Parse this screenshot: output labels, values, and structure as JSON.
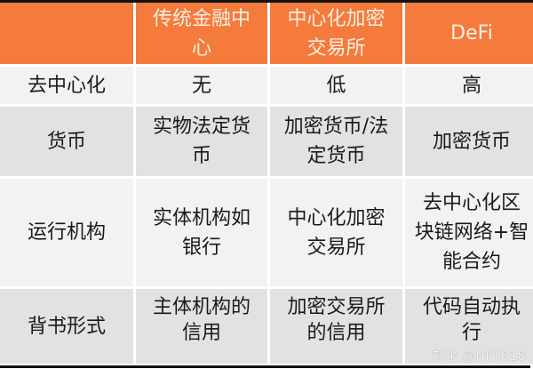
{
  "header": [
    "",
    [
      "传统金融中",
      "心"
    ],
    [
      "中心化加密",
      "交易所"
    ],
    [
      "DeFi"
    ]
  ],
  "rows": [
    {
      "label": "去中心化",
      "cells": [
        [
          "无"
        ],
        [
          "低"
        ],
        [
          "高"
        ]
      ]
    },
    {
      "label": "货币",
      "cells": [
        [
          "实物法定货",
          "币"
        ],
        [
          "加密货币/法",
          "定货币"
        ],
        [
          "加密货币"
        ]
      ]
    },
    {
      "label": "运行机构",
      "cells": [
        [
          "实体机构如",
          "银行"
        ],
        [
          "中心化加密",
          "交易所"
        ],
        [
          "去中心化区",
          "块链网络+智",
          "能合约"
        ]
      ]
    },
    {
      "label": "背书形式",
      "cells": [
        [
          "主体机构的",
          "信用"
        ],
        [
          "加密交易所",
          "的信用"
        ],
        [
          "代码自动执",
          "行"
        ]
      ]
    }
  ],
  "watermark": "知乎 @NFT618",
  "colors": {
    "header": "#f47b3c",
    "row_light": "#f2f2f2",
    "row_dark": "#e2e2e2"
  }
}
